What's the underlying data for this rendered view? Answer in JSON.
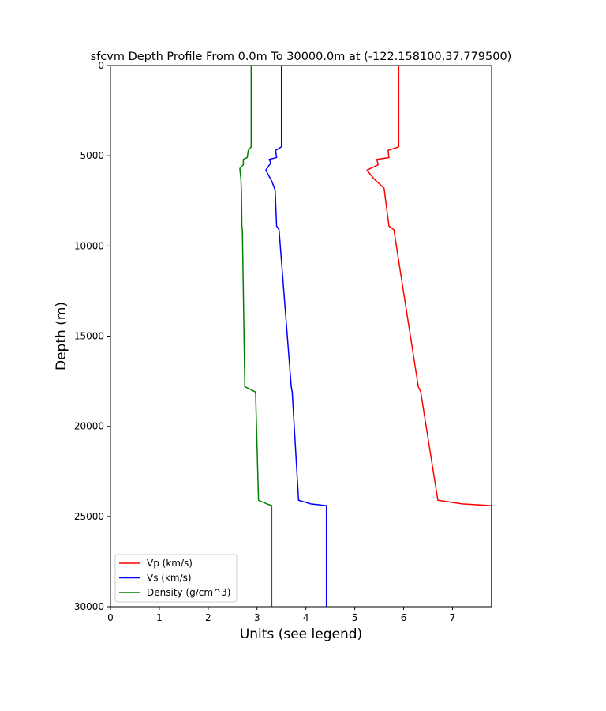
{
  "chart_data": {
    "type": "line",
    "title": "sfcvm Depth Profile From 0.0m To 30000.0m at (-122.158100,37.779500)",
    "xlabel": "Units (see legend)",
    "ylabel": "Depth (m)",
    "xlim": [
      0,
      7.8
    ],
    "ylim": [
      0,
      30000
    ],
    "y_inverted": true,
    "x_ticks": [
      0,
      1,
      2,
      3,
      4,
      5,
      6,
      7
    ],
    "x_tick_labels": [
      "0",
      "1",
      "2",
      "3",
      "4",
      "5",
      "6",
      "7"
    ],
    "y_ticks": [
      0,
      5000,
      10000,
      15000,
      20000,
      25000,
      30000
    ],
    "y_tick_labels": [
      "0",
      "5000",
      "10000",
      "15000",
      "20000",
      "25000",
      "30000"
    ],
    "grid": false,
    "legend_position": "bottom-left",
    "series": [
      {
        "name": "Vp (km/s)",
        "color": "#ff0000",
        "points": [
          [
            5.9,
            0
          ],
          [
            5.9,
            4500
          ],
          [
            5.68,
            4700
          ],
          [
            5.7,
            5100
          ],
          [
            5.45,
            5200
          ],
          [
            5.48,
            5500
          ],
          [
            5.25,
            5800
          ],
          [
            5.4,
            6300
          ],
          [
            5.6,
            6800
          ],
          [
            5.7,
            8900
          ],
          [
            5.8,
            9100
          ],
          [
            6.3,
            17800
          ],
          [
            6.35,
            18100
          ],
          [
            6.7,
            24100
          ],
          [
            7.2,
            24300
          ],
          [
            7.8,
            24400
          ],
          [
            7.8,
            30000
          ]
        ]
      },
      {
        "name": "Vs (km/s)",
        "color": "#0000ff",
        "points": [
          [
            3.5,
            0
          ],
          [
            3.5,
            4500
          ],
          [
            3.38,
            4700
          ],
          [
            3.4,
            5100
          ],
          [
            3.25,
            5200
          ],
          [
            3.28,
            5400
          ],
          [
            3.18,
            5800
          ],
          [
            3.3,
            6400
          ],
          [
            3.37,
            6900
          ],
          [
            3.4,
            8900
          ],
          [
            3.45,
            9100
          ],
          [
            3.7,
            17800
          ],
          [
            3.72,
            18100
          ],
          [
            3.85,
            24100
          ],
          [
            4.1,
            24300
          ],
          [
            4.42,
            24400
          ],
          [
            4.42,
            30000
          ]
        ]
      },
      {
        "name": "Density (g/cm^3)",
        "color": "#008000",
        "points": [
          [
            2.88,
            0
          ],
          [
            2.88,
            4500
          ],
          [
            2.82,
            4700
          ],
          [
            2.8,
            5100
          ],
          [
            2.72,
            5200
          ],
          [
            2.72,
            5500
          ],
          [
            2.65,
            5700
          ],
          [
            2.65,
            5800
          ],
          [
            2.67,
            6300
          ],
          [
            2.68,
            6900
          ],
          [
            2.69,
            8900
          ],
          [
            2.7,
            9100
          ],
          [
            2.75,
            17800
          ],
          [
            2.97,
            18100
          ],
          [
            3.03,
            24100
          ],
          [
            3.2,
            24300
          ],
          [
            3.3,
            24400
          ],
          [
            3.3,
            30000
          ]
        ]
      }
    ]
  }
}
